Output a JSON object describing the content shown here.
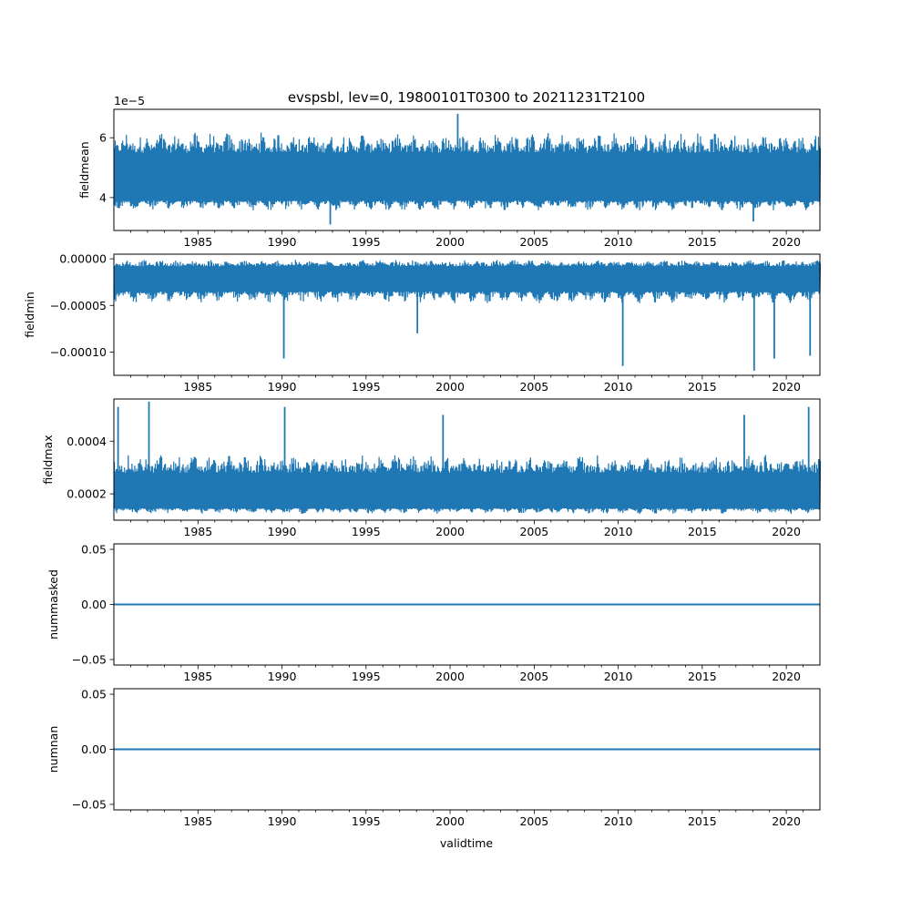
{
  "chart_data": {
    "type": "line",
    "title": "evspsbl, lev=0, 19800101T0300 to 20211231T2100",
    "xlabel": "validtime",
    "x_range": [
      "1980-01-01",
      "2021-12-31"
    ],
    "x_ticks": [
      "1985",
      "1990",
      "1995",
      "2000",
      "2005",
      "2010",
      "2015",
      "2020"
    ],
    "line_color": "#1f77b4",
    "grid": false,
    "panels": [
      {
        "ylabel": "fieldmean",
        "ylim": [
          2.9e-05,
          6.95e-05
        ],
        "y_ticks": [
          4e-05,
          6e-05
        ],
        "y_tick_labels": [
          "4",
          "6"
        ],
        "offset_text": "1e−5",
        "series": [
          {
            "typical_low": 3.9e-05,
            "typical_high": 5.5e-05,
            "extreme_low": 3.5e-05,
            "extreme_high": 6.1e-05,
            "spikes": [
              [
                "1992-11-15",
                3.1e-05
              ],
              [
                "2000-06-15",
                6.8e-05
              ],
              [
                "2018-01-15",
                3.2e-05
              ]
            ]
          }
        ]
      },
      {
        "ylabel": "fieldmin",
        "ylim": [
          -0.000125,
          5e-06
        ],
        "y_ticks": [
          -0.0001,
          -5e-05,
          0.0
        ],
        "y_tick_labels": [
          "−0.00010",
          "−0.00005",
          "0.00000"
        ],
        "series": [
          {
            "typical_low": -3.5e-05,
            "typical_high": -8e-06,
            "extreme_low": -5e-05,
            "extreme_high": -2e-06,
            "spikes": [
              [
                "1990-02-10",
                -0.000107
              ],
              [
                "1998-01-20",
                -8e-05
              ],
              [
                "2010-04-10",
                -0.000115
              ],
              [
                "2018-02-01",
                -0.00012
              ],
              [
                "2019-04-15",
                -0.000107
              ],
              [
                "2021-06-01",
                -0.000104
              ]
            ]
          }
        ]
      },
      {
        "ylabel": "fieldmax",
        "ylim": [
          0.0001,
          0.00056
        ],
        "y_ticks": [
          0.0002,
          0.0004
        ],
        "y_tick_labels": [
          "0.0002",
          "0.0004"
        ],
        "series": [
          {
            "typical_low": 0.000145,
            "typical_high": 0.00028,
            "extreme_low": 0.00012,
            "extreme_high": 0.00034,
            "spikes": [
              [
                "1980-04-01",
                0.00053
              ],
              [
                "1982-02-01",
                0.00055
              ],
              [
                "1990-03-01",
                0.00053
              ],
              [
                "1999-08-01",
                0.0005
              ],
              [
                "2017-07-01",
                0.0005
              ],
              [
                "2021-05-01",
                0.00053
              ]
            ]
          }
        ]
      },
      {
        "ylabel": "nummasked",
        "ylim": [
          -0.055,
          0.055
        ],
        "y_ticks": [
          -0.05,
          0.0,
          0.05
        ],
        "y_tick_labels": [
          "−0.05",
          "0.00",
          "0.05"
        ],
        "series": [
          {
            "constant": 0.0
          }
        ]
      },
      {
        "ylabel": "numnan",
        "ylim": [
          -0.055,
          0.055
        ],
        "y_ticks": [
          -0.05,
          0.0,
          0.05
        ],
        "y_tick_labels": [
          "−0.05",
          "0.00",
          "0.05"
        ],
        "series": [
          {
            "constant": 0.0
          }
        ]
      }
    ]
  }
}
